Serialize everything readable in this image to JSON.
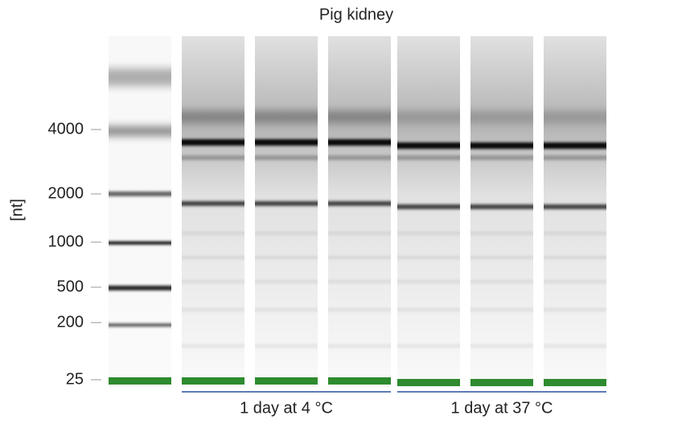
{
  "title": "Pig kidney",
  "axis_label": "[nt]",
  "ticks": [
    4000,
    2000,
    1000,
    500,
    200,
    25
  ],
  "groups": [
    "1 day at 4 °C",
    "1 day at 37 °C"
  ]
}
